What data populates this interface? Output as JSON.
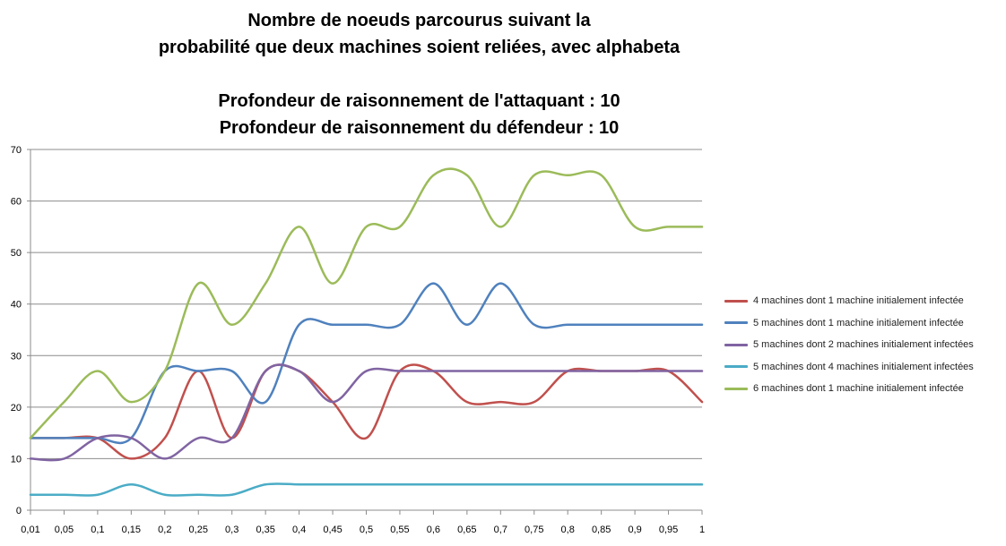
{
  "chart_data": {
    "type": "line",
    "title_lines": [
      "Nombre de noeuds parcourus suivant la",
      "probabilité que deux machines soient reliées, avec alphabeta",
      "Profondeur de raisonnement de l'attaquant : 10",
      "Profondeur de raisonnement du défendeur : 10"
    ],
    "categories": [
      "0,01",
      "0,05",
      "0,1",
      "0,15",
      "0,2",
      "0,25",
      "0,3",
      "0,35",
      "0,4",
      "0,45",
      "0,5",
      "0,55",
      "0,6",
      "0,65",
      "0,7",
      "0,75",
      "0,8",
      "0,85",
      "0,9",
      "0,95",
      "1"
    ],
    "ylim": [
      0,
      70
    ],
    "yticks": [
      0,
      10,
      20,
      30,
      40,
      50,
      60,
      70
    ],
    "grid": true,
    "legend_position": "right",
    "series": [
      {
        "name": "4 machines dont 1 machine initialement infectée",
        "color": "#c0504d",
        "values": [
          14,
          14,
          14,
          10,
          14,
          27,
          14,
          27,
          27,
          21,
          14,
          27,
          27,
          21,
          21,
          21,
          27,
          27,
          27,
          27,
          21
        ]
      },
      {
        "name": "5 machines dont 1 machine initialement infectée",
        "color": "#4f81bd",
        "values": [
          14,
          14,
          14,
          14,
          27,
          27,
          27,
          21,
          36,
          36,
          36,
          36,
          44,
          36,
          44,
          36,
          36,
          36,
          36,
          36,
          36
        ]
      },
      {
        "name": "5 machines dont 2 machines initialement infectées",
        "color": "#8064a2",
        "values": [
          10,
          10,
          14,
          14,
          10,
          14,
          14,
          27,
          27,
          21,
          27,
          27,
          27,
          27,
          27,
          27,
          27,
          27,
          27,
          27,
          27
        ]
      },
      {
        "name": "5 machines dont 4 machines initialement infectées",
        "color": "#4bacc6",
        "values": [
          3,
          3,
          3,
          5,
          3,
          3,
          3,
          5,
          5,
          5,
          5,
          5,
          5,
          5,
          5,
          5,
          5,
          5,
          5,
          5,
          5
        ]
      },
      {
        "name": "6 machines dont 1 machine initialement infectée",
        "color": "#9bbb59",
        "values": [
          14,
          21,
          27,
          21,
          27,
          44,
          36,
          44,
          55,
          44,
          55,
          55,
          65,
          65,
          55,
          65,
          65,
          65,
          55,
          55,
          55
        ]
      }
    ]
  }
}
